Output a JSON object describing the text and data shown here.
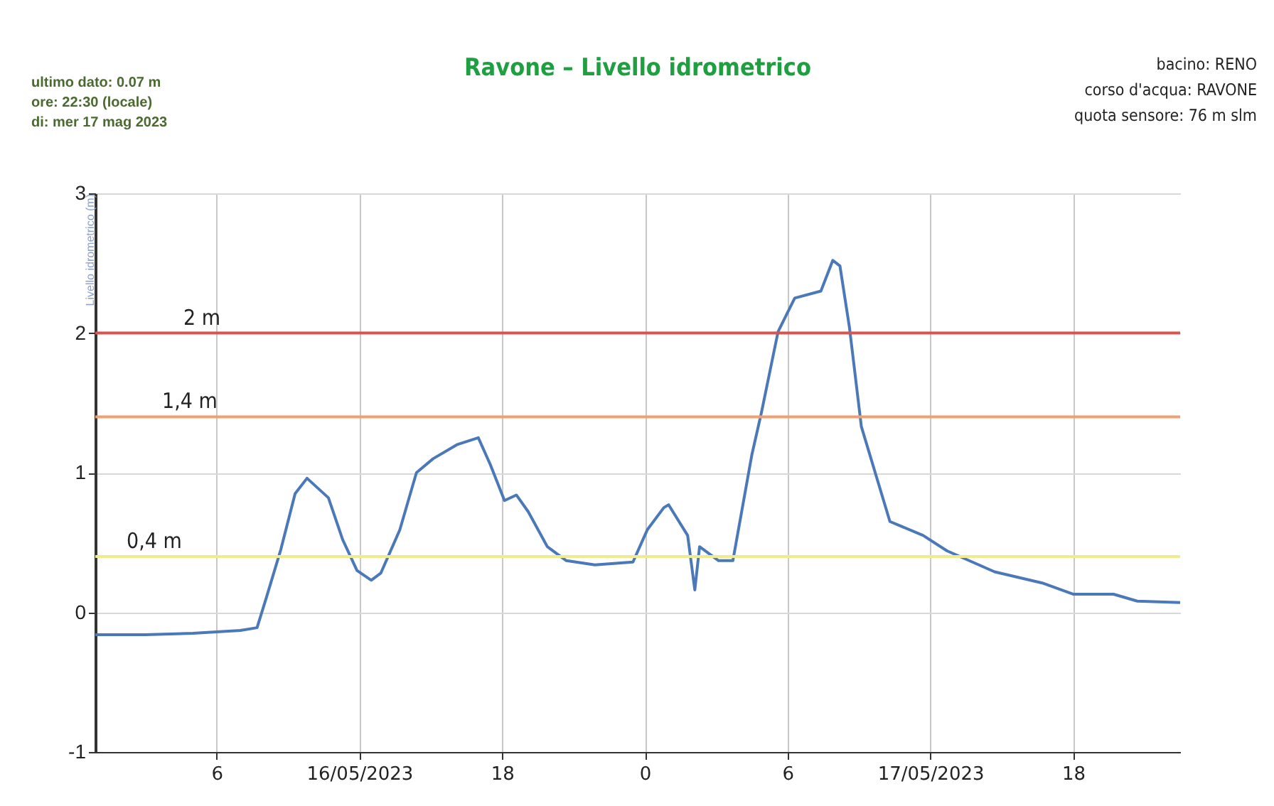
{
  "chart_data": {
    "type": "line",
    "title": "Ravone – Livello idrometrico",
    "ylabel": "Livello idrometrico (m)",
    "annotations": [
      "ultimo dato: 0.07 m",
      "ore: 22:30 (locale)",
      "di: mer 17 mag 2023",
      "bacino: RENO",
      "corso d'acqua: RAVONE",
      "quota sensore: 76 m slm"
    ],
    "xlim": [
      "2023-05-16T00:54",
      "2023-05-17T22:30"
    ],
    "xticks": [
      {
        "value": "2023-05-16T06:00",
        "label": "6"
      },
      {
        "value": "2023-05-16T12:00",
        "label": "16/05/2023"
      },
      {
        "value": "2023-05-16T18:00",
        "label": "18"
      },
      {
        "value": "2023-05-17T00:00",
        "label": "0"
      },
      {
        "value": "2023-05-17T06:00",
        "label": "6"
      },
      {
        "value": "2023-05-17T12:00",
        "label": "17/05/2023"
      },
      {
        "value": "2023-05-17T18:00",
        "label": "18"
      }
    ],
    "ylim": [
      -1,
      3
    ],
    "yticks": [
      -1,
      0,
      1,
      2,
      3
    ],
    "grid": true,
    "legend": false,
    "marker": "none",
    "line_style": "solid",
    "ref_lines": [
      {
        "axis": "y",
        "value": 2,
        "label": "2 m",
        "color": "#d9534f"
      },
      {
        "axis": "y",
        "value": 1.4,
        "label": "1,4 m",
        "color": "#f0a070"
      },
      {
        "axis": "y",
        "value": 0.4,
        "label": "0,4 m",
        "color": "#f0ea90"
      }
    ],
    "series": [
      {
        "color": "#4a78b8",
        "x": [
          "2023-05-16T00:54",
          "2023-05-16T03:00",
          "2023-05-16T05:00",
          "2023-05-16T07:00",
          "2023-05-16T07:42",
          "2023-05-16T08:06",
          "2023-05-16T08:42",
          "2023-05-16T09:18",
          "2023-05-16T09:48",
          "2023-05-16T10:42",
          "2023-05-16T11:18",
          "2023-05-16T11:54",
          "2023-05-16T12:30",
          "2023-05-16T12:54",
          "2023-05-16T13:42",
          "2023-05-16T14:24",
          "2023-05-16T15:06",
          "2023-05-16T16:06",
          "2023-05-16T17:00",
          "2023-05-16T17:30",
          "2023-05-16T18:06",
          "2023-05-16T18:36",
          "2023-05-16T19:06",
          "2023-05-16T19:54",
          "2023-05-16T20:42",
          "2023-05-16T21:54",
          "2023-05-16T23:30",
          "2023-05-17T00:06",
          "2023-05-17T00:48",
          "2023-05-17T01:00",
          "2023-05-17T01:48",
          "2023-05-17T02:06",
          "2023-05-17T02:18",
          "2023-05-17T03:06",
          "2023-05-17T03:42",
          "2023-05-17T04:30",
          "2023-05-17T04:54",
          "2023-05-17T05:36",
          "2023-05-17T06:18",
          "2023-05-17T07:24",
          "2023-05-17T07:54",
          "2023-05-17T08:12",
          "2023-05-17T08:36",
          "2023-05-17T09:06",
          "2023-05-17T10:18",
          "2023-05-17T11:42",
          "2023-05-17T12:42",
          "2023-05-17T14:42",
          "2023-05-17T16:42",
          "2023-05-17T18:00",
          "2023-05-17T19:42",
          "2023-05-17T20:42",
          "2023-05-17T22:30"
        ],
        "values": [
          -0.16,
          -0.16,
          -0.15,
          -0.13,
          -0.11,
          0.11,
          0.45,
          0.85,
          0.96,
          0.82,
          0.52,
          0.3,
          0.23,
          0.28,
          0.59,
          1.0,
          1.1,
          1.2,
          1.25,
          1.06,
          0.8,
          0.84,
          0.72,
          0.47,
          0.37,
          0.34,
          0.36,
          0.59,
          0.75,
          0.77,
          0.55,
          0.16,
          0.47,
          0.37,
          0.37,
          1.13,
          1.43,
          2.01,
          2.25,
          2.3,
          2.52,
          2.48,
          2.04,
          1.33,
          0.65,
          0.55,
          0.44,
          0.29,
          0.21,
          0.13,
          0.13,
          0.08,
          0.07
        ]
      }
    ]
  }
}
